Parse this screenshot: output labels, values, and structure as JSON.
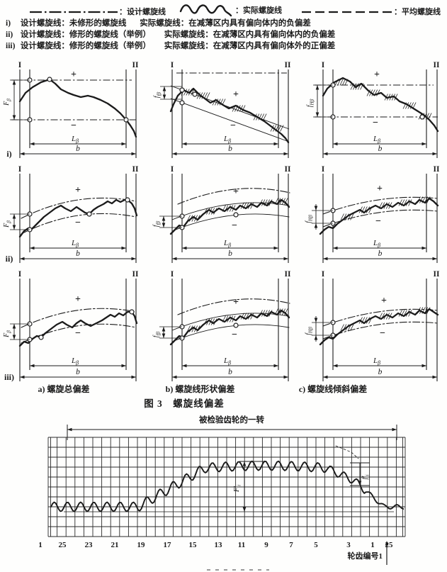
{
  "colors": {
    "ink": "#1b1b1b",
    "paper": "#fefefd",
    "faint": "#9a9a9a"
  },
  "legend": {
    "items": [
      {
        "style": "dash-dot",
        "label": "：设计螺旋线"
      },
      {
        "style": "wavy",
        "label": "：实际螺旋线"
      },
      {
        "style": "dashed",
        "label": "：平均螺旋线"
      }
    ]
  },
  "definitions": [
    {
      "prefix": "i)",
      "design": "设计螺旋线：未修形的螺旋线",
      "actual": "实际螺旋线：在减薄区内具有偏向体内的负偏差"
    },
    {
      "prefix": "ii)",
      "design": "设计螺旋线：修形的螺旋线（举例）",
      "actual": "实际螺旋线：在减薄区内具有偏向体内的负偏差"
    },
    {
      "prefix": "iii)",
      "design": "设计螺旋线：修形的螺旋线（举例）",
      "actual": "实际螺旋线：在减薄区内具有偏向体外的正偏差"
    }
  ],
  "figure3": {
    "caption": "图 3　螺旋线偏差",
    "column_captions": [
      "a) 螺旋总偏差",
      "b) 螺旋线形状偏差",
      "c) 螺旋线倾斜偏差"
    ],
    "row_labels": [
      "i)",
      "ii)",
      "iii)"
    ],
    "labels": {
      "datum_I": "I",
      "datum_II": "II",
      "plus": "+",
      "minus": "−",
      "b": "b",
      "L_beta": {
        "main": "L",
        "sub": "β"
      },
      "F_beta": {
        "main": "F",
        "sub": "β"
      },
      "f_f_beta": {
        "main": "f",
        "sub": "fβ"
      },
      "f_H_beta": {
        "main": "f",
        "sub": "Hβ"
      }
    }
  },
  "figure4": {
    "span_label": "被检验齿轮的一转",
    "F_i": {
      "main": "F′",
      "sub": "i"
    },
    "f_i": {
      "main": "f′",
      "sub": "i"
    },
    "x_ticks": [
      "1",
      "25",
      "23",
      "21",
      "19",
      "17",
      "15",
      "13",
      "11",
      "9",
      "7",
      "5",
      "3",
      "1",
      "25"
    ],
    "tooth_label": "轮齿编号1"
  }
}
